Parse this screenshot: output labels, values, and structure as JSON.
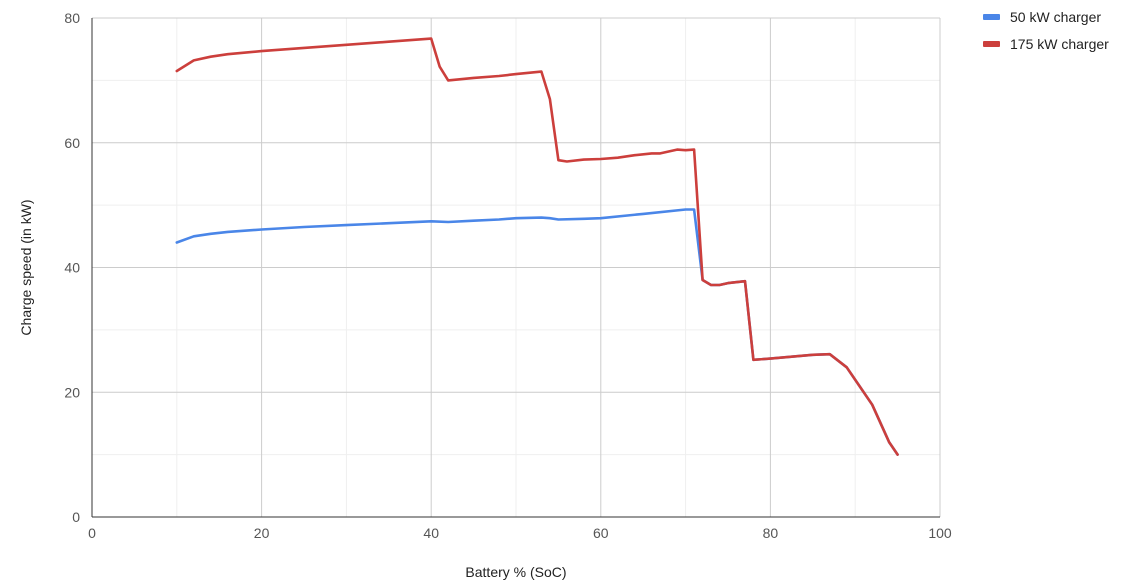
{
  "chart_data": {
    "type": "line",
    "title": "",
    "xlabel": "Battery % (SoC)",
    "ylabel": "Charge speed (in kW)",
    "xlim": [
      0,
      100
    ],
    "ylim": [
      0,
      80
    ],
    "x_ticks": [
      0,
      20,
      40,
      60,
      80,
      100
    ],
    "y_ticks": [
      0,
      20,
      40,
      60,
      80
    ],
    "x_minor_ticks": [
      10,
      30,
      50,
      70,
      90
    ],
    "y_minor_ticks": [
      10,
      30,
      50,
      70
    ],
    "grid": true,
    "legend_position": "top-right",
    "series": [
      {
        "name": "50 kW charger",
        "color": "#4a86e8",
        "x": [
          10,
          12,
          14,
          16,
          20,
          25,
          30,
          35,
          40,
          42,
          45,
          48,
          50,
          53,
          54,
          55,
          58,
          60,
          65,
          70,
          71,
          72,
          73,
          74,
          75,
          77,
          78,
          80,
          85,
          87,
          89,
          92,
          94,
          95
        ],
        "y": [
          44,
          45,
          45.4,
          45.7,
          46.1,
          46.5,
          46.8,
          47.1,
          47.4,
          47.3,
          47.5,
          47.7,
          47.9,
          48,
          47.9,
          47.7,
          47.8,
          47.9,
          48.6,
          49.3,
          49.3,
          38,
          37.2,
          37.2,
          37.5,
          37.8,
          25.2,
          25.4,
          26,
          26.1,
          24,
          18,
          12,
          10
        ]
      },
      {
        "name": "175 kW charger",
        "color": "#cc3f3c",
        "x": [
          10,
          12,
          14,
          16,
          20,
          25,
          30,
          35,
          40,
          41,
          42,
          45,
          48,
          50,
          53,
          54,
          55,
          56,
          58,
          60,
          62,
          64,
          66,
          67,
          69,
          70,
          71,
          72,
          73,
          74,
          75,
          77,
          78,
          80,
          85,
          87,
          89,
          92,
          94,
          95
        ],
        "y": [
          71.5,
          73.2,
          73.8,
          74.2,
          74.7,
          75.2,
          75.7,
          76.2,
          76.7,
          72.2,
          70,
          70.4,
          70.7,
          71,
          71.4,
          67,
          57.2,
          57,
          57.3,
          57.4,
          57.6,
          58,
          58.3,
          58.3,
          58.9,
          58.8,
          58.9,
          38,
          37.2,
          37.2,
          37.5,
          37.8,
          25.2,
          25.4,
          26,
          26.1,
          24,
          18,
          12,
          10
        ]
      }
    ]
  }
}
